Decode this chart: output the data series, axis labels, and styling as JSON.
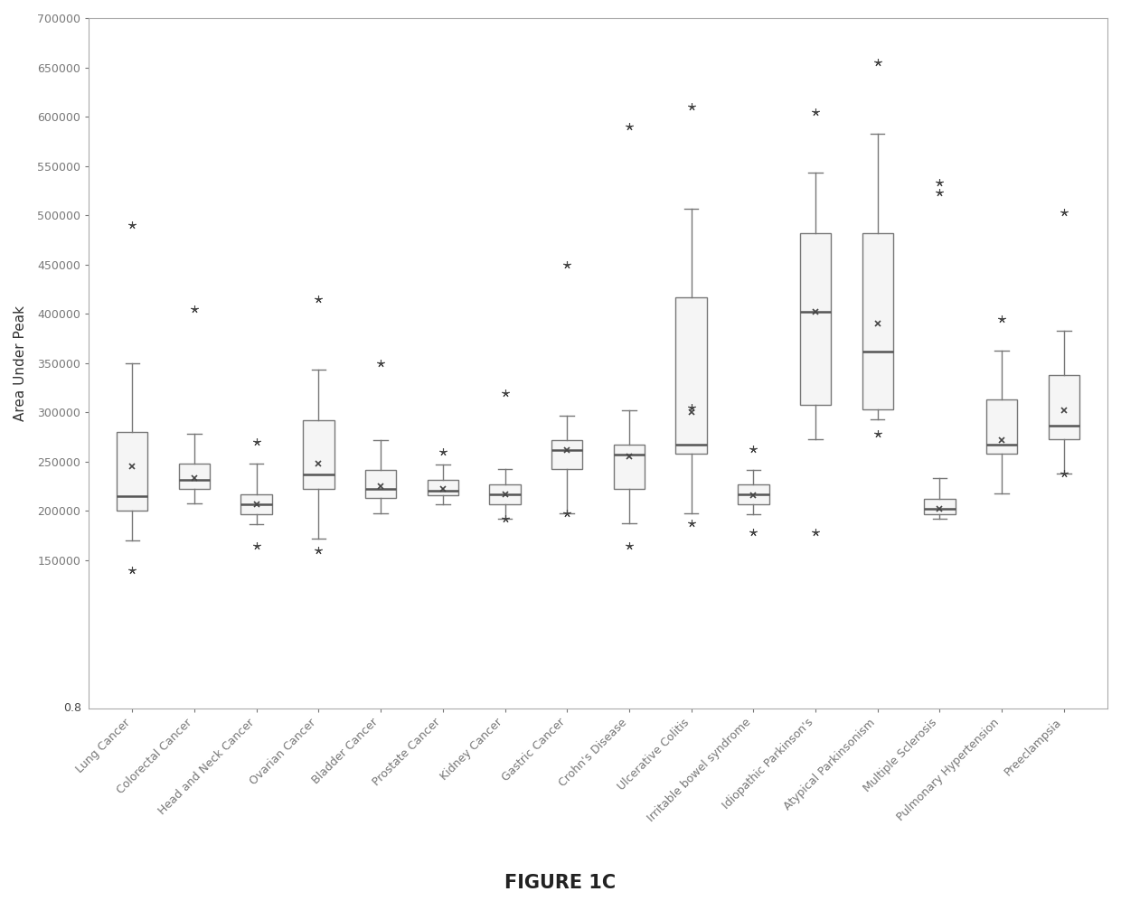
{
  "categories": [
    "Lung Cancer",
    "Colorectal Cancer",
    "Head and Neck Cancer",
    "Ovarian Cancer",
    "Bladder Cancer",
    "Prostate Cancer",
    "Kidney Cancer",
    "Gastric Cancer",
    "Crohn's Disease",
    "Ulcerative Colitis",
    "Irritable bowel syndrome",
    "Idiopathic Parkinson's",
    "Atypical Parkinsonism",
    "Multiple Sclerosis",
    "Pulmonary Hypertension",
    "Preeclampsia"
  ],
  "box_data": [
    {
      "q1": 200000,
      "median": 215000,
      "q3": 280000,
      "whisker_low": 170000,
      "whisker_high": 350000,
      "outliers": [
        490000,
        140000
      ],
      "mean": 245000
    },
    {
      "q1": 222000,
      "median": 232000,
      "q3": 248000,
      "whisker_low": 208000,
      "whisker_high": 278000,
      "outliers": [
        405000
      ],
      "mean": 233000
    },
    {
      "q1": 197000,
      "median": 207000,
      "q3": 217000,
      "whisker_low": 187000,
      "whisker_high": 248000,
      "outliers": [
        270000,
        165000
      ],
      "mean": 207000
    },
    {
      "q1": 222000,
      "median": 237000,
      "q3": 292000,
      "whisker_low": 172000,
      "whisker_high": 343000,
      "outliers": [
        415000,
        160000
      ],
      "mean": 248000
    },
    {
      "q1": 213000,
      "median": 222000,
      "q3": 242000,
      "whisker_low": 198000,
      "whisker_high": 272000,
      "outliers": [
        350000
      ],
      "mean": 225000
    },
    {
      "q1": 216000,
      "median": 221000,
      "q3": 232000,
      "whisker_low": 207000,
      "whisker_high": 247000,
      "outliers": [
        260000
      ],
      "mean": 222000
    },
    {
      "q1": 207000,
      "median": 217000,
      "q3": 227000,
      "whisker_low": 192000,
      "whisker_high": 243000,
      "outliers": [
        320000,
        192000
      ],
      "mean": 217000
    },
    {
      "q1": 243000,
      "median": 262000,
      "q3": 272000,
      "whisker_low": 198000,
      "whisker_high": 297000,
      "outliers": [
        450000,
        198000
      ],
      "mean": 262000
    },
    {
      "q1": 222000,
      "median": 257000,
      "q3": 267000,
      "whisker_low": 188000,
      "whisker_high": 302000,
      "outliers": [
        590000,
        165000
      ],
      "mean": 255000
    },
    {
      "q1": 258000,
      "median": 267000,
      "q3": 417000,
      "whisker_low": 198000,
      "whisker_high": 507000,
      "outliers": [
        610000,
        188000,
        305000
      ],
      "mean": 300000
    },
    {
      "q1": 207000,
      "median": 217000,
      "q3": 227000,
      "whisker_low": 197000,
      "whisker_high": 242000,
      "outliers": [
        178000,
        263000
      ],
      "mean": 216000
    },
    {
      "q1": 308000,
      "median": 402000,
      "q3": 482000,
      "whisker_low": 273000,
      "whisker_high": 543000,
      "outliers": [
        605000,
        178000
      ],
      "mean": 402000
    },
    {
      "q1": 303000,
      "median": 362000,
      "q3": 482000,
      "whisker_low": 293000,
      "whisker_high": 583000,
      "outliers": [
        655000,
        278000
      ],
      "mean": 390000
    },
    {
      "q1": 197000,
      "median": 202000,
      "q3": 212000,
      "whisker_low": 192000,
      "whisker_high": 233000,
      "outliers": [
        533000,
        523000
      ],
      "mean": 202000
    },
    {
      "q1": 258000,
      "median": 267000,
      "q3": 313000,
      "whisker_low": 218000,
      "whisker_high": 363000,
      "outliers": [
        395000
      ],
      "mean": 272000
    },
    {
      "q1": 273000,
      "median": 287000,
      "q3": 338000,
      "whisker_low": 238000,
      "whisker_high": 383000,
      "outliers": [
        503000,
        238000
      ],
      "mean": 302000
    }
  ],
  "ylabel": "Area Under Peak",
  "title": "FIGURE 1C",
  "ylim_data": [
    150000,
    700000
  ],
  "ytick_vals": [
    150000,
    200000,
    250000,
    300000,
    350000,
    400000,
    450000,
    500000,
    550000,
    600000,
    650000,
    700000
  ],
  "ytick_labels": [
    "150000",
    "200000",
    "250000",
    "300000",
    "350000",
    "400000",
    "450000",
    "500000",
    "550000",
    "600000",
    "650000",
    "700000"
  ],
  "y_bottom_label": "0.8",
  "box_color": "#f5f5f5",
  "box_edge_color": "#777777",
  "whisker_color": "#777777",
  "median_color": "#555555",
  "figure_bg": "#ffffff",
  "plot_bg": "#ffffff",
  "spine_color": "#aaaaaa"
}
